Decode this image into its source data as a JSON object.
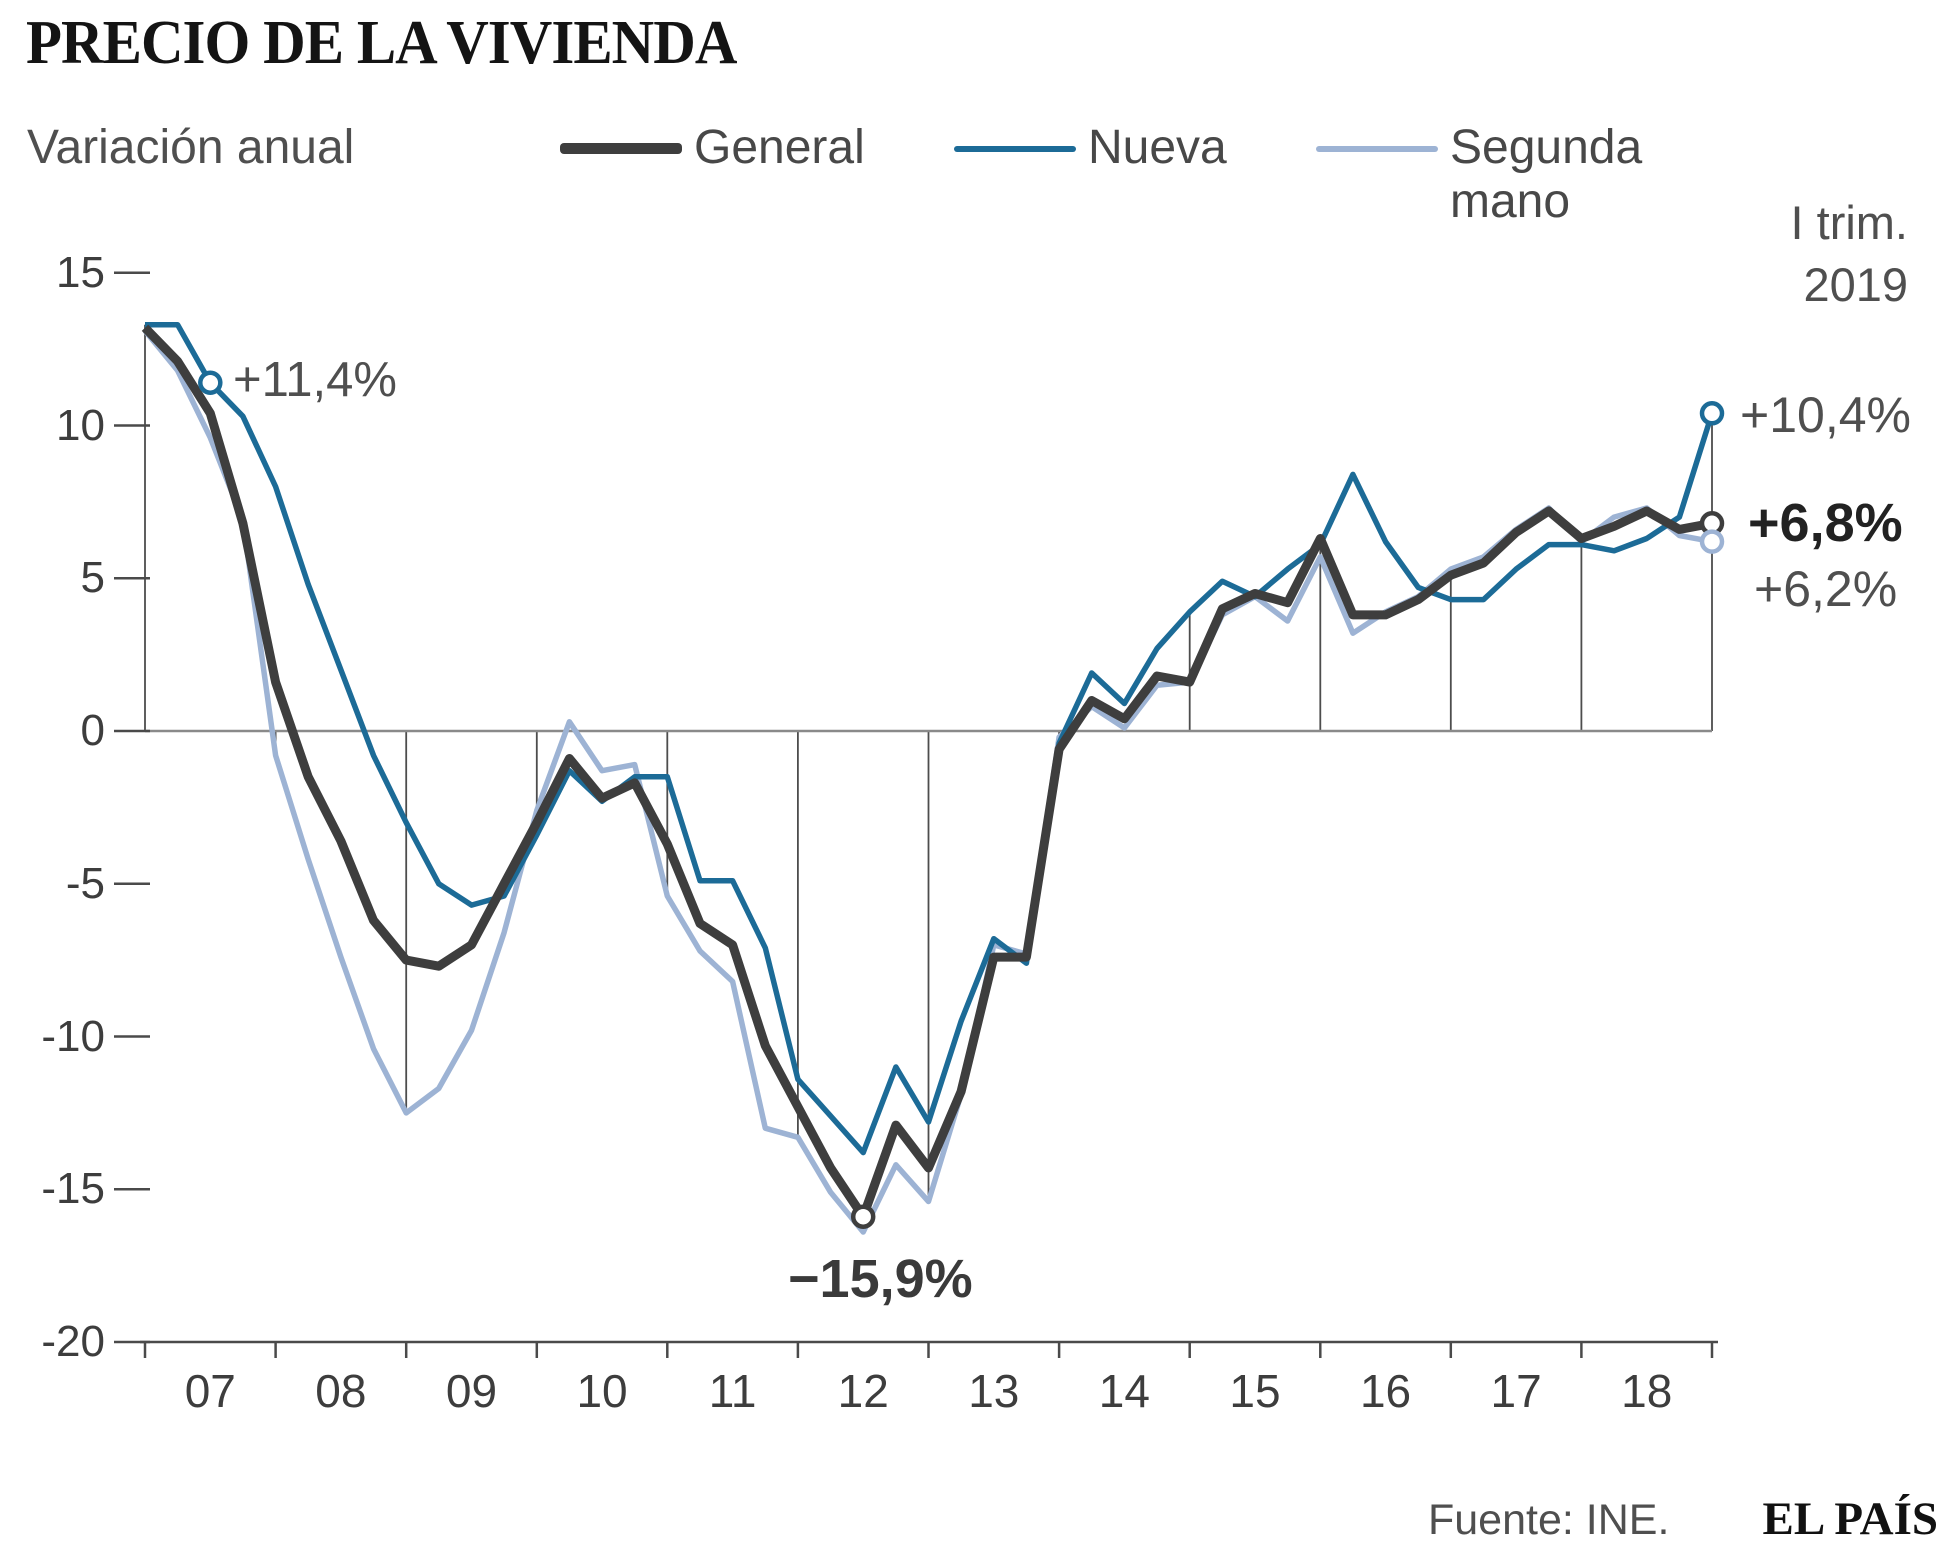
{
  "title": "PRECIO DE LA VIVIENDA",
  "legend": {
    "subtitle": "Variación anual",
    "general_label": "General",
    "nueva_label": "Nueva",
    "segunda_label": "Segunda mano"
  },
  "right_panel": {
    "period_line1": "I trim.",
    "period_line2": "2019",
    "nueva_value": "+10,4%",
    "general_value": "+6,8%",
    "segunda_value": "+6,2%"
  },
  "annotations": {
    "start_value": "+11,4%",
    "min_value": "−15,9%"
  },
  "footer": {
    "source": "Fuente: INE.",
    "brand": "EL PAÍS"
  },
  "chart_data": {
    "type": "line",
    "title": "Precio de la vivienda — variación anual (%)",
    "x_start": "2007-Q1",
    "x_end": "2019-Q1",
    "frequency": "quarterly",
    "ylim": [
      -20,
      15
    ],
    "yticks": [
      15,
      10,
      5,
      0,
      -5,
      -10,
      -15,
      -20
    ],
    "ytick_labels": [
      "15",
      "10",
      "5",
      "0",
      "-5",
      "-10",
      "-15",
      "-20"
    ],
    "year_labels": [
      "07",
      "08",
      "09",
      "10",
      "11",
      "12",
      "13",
      "14",
      "15",
      "16",
      "17",
      "18"
    ],
    "colors": {
      "axis": "#4a4a4a",
      "zero_line": "#8a8a8a",
      "dropline": "#4d4d4d"
    },
    "series": [
      {
        "id": "general",
        "name": "General",
        "color": "#3e3e3e",
        "stroke_width": 9,
        "values": [
          13.2,
          12.1,
          10.4,
          6.8,
          1.6,
          -1.5,
          -3.6,
          -6.2,
          -7.5,
          -7.7,
          -7.0,
          -5.0,
          -3.0,
          -0.9,
          -2.2,
          -1.7,
          -3.7,
          -6.3,
          -7.0,
          -10.3,
          -12.3,
          -14.3,
          -15.9,
          -12.9,
          -14.3,
          -11.8,
          -7.4,
          -7.4,
          -0.6,
          1.0,
          0.4,
          1.8,
          1.6,
          4.0,
          4.5,
          4.2,
          6.3,
          3.8,
          3.8,
          4.3,
          5.1,
          5.5,
          6.5,
          7.2,
          6.3,
          6.7,
          7.2,
          6.6,
          6.8
        ]
      },
      {
        "id": "nueva",
        "name": "Nueva",
        "color": "#1c6b97",
        "stroke_width": 5.5,
        "values": [
          13.3,
          13.3,
          11.4,
          10.3,
          8.0,
          4.8,
          2.0,
          -0.8,
          -3.0,
          -5.0,
          -5.7,
          -5.4,
          -3.4,
          -1.3,
          -2.3,
          -1.5,
          -1.5,
          -4.9,
          -4.9,
          -7.1,
          -11.4,
          -12.6,
          -13.8,
          -11.0,
          -12.8,
          -9.5,
          -6.8,
          -7.6,
          -0.4,
          1.9,
          0.9,
          2.7,
          3.9,
          4.9,
          4.4,
          5.3,
          6.1,
          8.4,
          6.2,
          4.7,
          4.3,
          4.3,
          5.3,
          6.1,
          6.1,
          5.9,
          6.3,
          7.0,
          10.4
        ]
      },
      {
        "id": "segunda",
        "name": "Segunda mano",
        "color": "#9db3d4",
        "stroke_width": 5.5,
        "values": [
          13.1,
          11.8,
          9.6,
          6.9,
          -0.8,
          -4.2,
          -7.4,
          -10.4,
          -12.5,
          -11.7,
          -9.8,
          -6.6,
          -2.6,
          0.3,
          -1.3,
          -1.1,
          -5.4,
          -7.2,
          -8.2,
          -13.0,
          -13.3,
          -15.1,
          -16.4,
          -14.2,
          -15.4,
          -11.9,
          -7.0,
          -7.3,
          -0.2,
          0.8,
          0.1,
          1.5,
          1.6,
          3.8,
          4.4,
          3.6,
          5.7,
          3.2,
          3.9,
          4.4,
          5.3,
          5.7,
          6.6,
          7.3,
          6.2,
          7.0,
          7.3,
          6.4,
          6.2
        ]
      }
    ],
    "markers": [
      {
        "series": "nueva",
        "index": 2,
        "label": "+11,4%"
      },
      {
        "series": "general",
        "index": 22,
        "label": "−15,9%"
      },
      {
        "series": "nueva",
        "index": 48,
        "label": "+10,4%"
      },
      {
        "series": "general",
        "index": 48,
        "label": "+6,8%"
      },
      {
        "series": "segunda",
        "index": 48,
        "label": "+6,2%"
      }
    ]
  }
}
